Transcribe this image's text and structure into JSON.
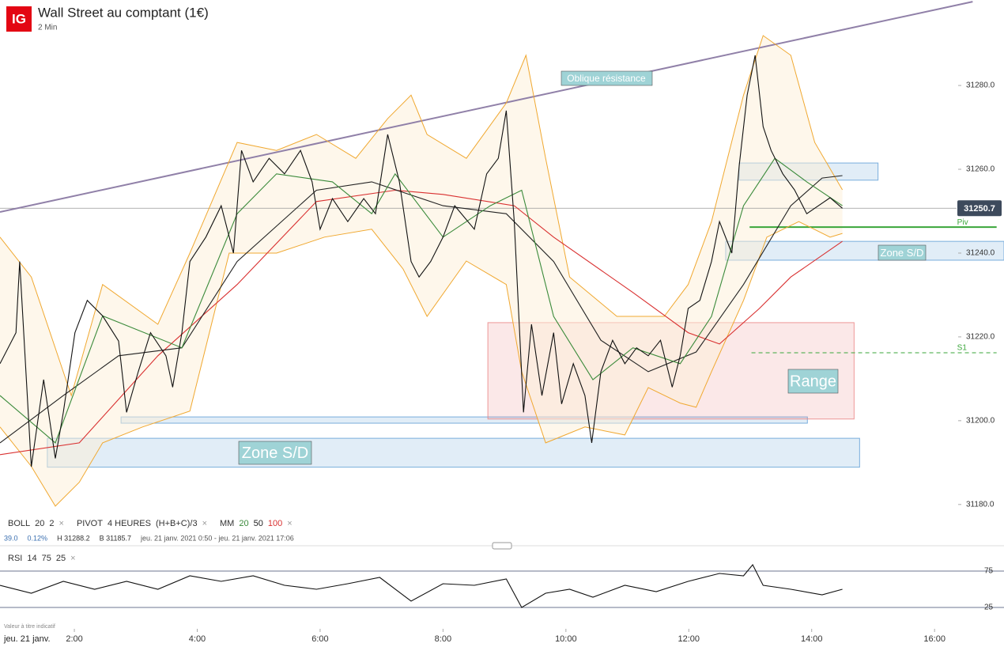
{
  "header": {
    "logo": "IG",
    "title": "Wall Street au comptant (1€)",
    "subtitle": "2 Min"
  },
  "legend": {
    "boll": "BOLL",
    "boll_params": [
      "20",
      "2"
    ],
    "pivot": "PIVOT",
    "pivot_params": [
      "4 HEURES",
      "(H+B+C)/3"
    ],
    "mm": "MM",
    "mm_params": [
      "20",
      "50",
      "100"
    ],
    "close": "×"
  },
  "info": [
    "39.0",
    "0.12%",
    "H 31288.2",
    "B 31185.7",
    "jeu. 21 janv. 2021 0:50 - jeu. 21 janv. 2021 17:06"
  ],
  "rsi_legend": {
    "label": "RSI",
    "params": [
      "14",
      "75",
      "25"
    ]
  },
  "watermark": "Valeur à titre indicatif",
  "date_label": "jeu. 21 janv.",
  "chart_data": [
    {
      "type": "line",
      "xlim": [
        0.79,
        17.13
      ],
      "ylim": [
        31177.7,
        31300.4
      ],
      "yticks": [
        {
          "value": 31180,
          "label": "31180.0"
        },
        {
          "value": 31200,
          "label": "31200.0"
        },
        {
          "value": 31220,
          "label": "31220.0"
        },
        {
          "value": 31240,
          "label": "31240.0"
        },
        {
          "value": 31260,
          "label": "31260.0"
        },
        {
          "value": 31280,
          "label": "31280.0"
        }
      ],
      "series": [
        {
          "color": "#f0a830",
          "band": "upper",
          "x": [
            0.79,
            1.3,
            1.95,
            2.46,
            3.36,
            3.88,
            4.65,
            5.29,
            5.94,
            6.58,
            7.1,
            7.48,
            7.74,
            8.38,
            9.03,
            9.35,
            9.67,
            10.06,
            10.83,
            11.6,
            11.99,
            12.37,
            12.89,
            13.21,
            13.66,
            14.05,
            14.5
          ],
          "values": [
            31243.8,
            31234.3,
            31206.0,
            31232.5,
            31223.0,
            31240.0,
            31266.4,
            31264.5,
            31268.3,
            31262.6,
            31272.1,
            31277.7,
            31268.3,
            31262.6,
            31275.8,
            31287.2,
            31262.6,
            31234.3,
            31224.9,
            31224.9,
            31232.5,
            31247.5,
            31277.7,
            31291.9,
            31287.2,
            31266.4,
            31255.1
          ]
        },
        {
          "color": "#f0a830",
          "band": "lower",
          "x": [
            0.79,
            1.3,
            1.69,
            2.08,
            2.46,
            3.11,
            3.88,
            4.52,
            5.29,
            6.07,
            6.84,
            7.35,
            7.74,
            8.38,
            9.03,
            9.28,
            9.67,
            10.31,
            10.96,
            11.34,
            11.86,
            12.12,
            12.37,
            12.89,
            13.27,
            13.79,
            14.3,
            14.5
          ],
          "values": [
            31198.5,
            31189.1,
            31179.6,
            31185.3,
            31194.7,
            31198.5,
            31202.3,
            31240.0,
            31240.0,
            31243.8,
            31245.7,
            31236.2,
            31224.9,
            31238.1,
            31232.5,
            31211.7,
            31194.7,
            31198.5,
            31196.6,
            31207.9,
            31204.2,
            31203.2,
            31211.7,
            31228.7,
            31243.8,
            31247.5,
            31243.8,
            31244.7
          ]
        },
        {
          "color": "#d93030",
          "x": [
            0.79,
            2.08,
            3.36,
            4.65,
            5.94,
            7.22,
            8.0,
            9.16,
            9.8,
            11.09,
            11.99,
            12.5,
            13.15,
            13.66,
            14.5
          ],
          "values": [
            31191.9,
            31194.7,
            31215.5,
            31232.5,
            31252.3,
            31255.0,
            31254.0,
            31251.3,
            31243.8,
            31230.6,
            31221.0,
            31218.3,
            31226.8,
            31234.3,
            31242.8
          ]
        },
        {
          "color": "#222222",
          "x": [
            0.79,
            1.82,
            2.72,
            3.75,
            4.65,
            5.94,
            6.84,
            8.0,
            9.03,
            9.8,
            10.57,
            11.34,
            12.12,
            12.89,
            13.66,
            14.17,
            14.5
          ],
          "values": [
            31194.7,
            31206.0,
            31215.5,
            31217.4,
            31238.0,
            31255.0,
            31257.0,
            31251.3,
            31249.4,
            31238.0,
            31219.2,
            31211.7,
            31216.4,
            31232.5,
            31251.3,
            31257.9,
            31258.5
          ]
        },
        {
          "color": "#3a8a3a",
          "x": [
            0.79,
            1.69,
            2.46,
            3.75,
            4.65,
            5.29,
            6.2,
            6.84,
            7.22,
            8.0,
            8.77,
            9.28,
            9.8,
            10.44,
            11.09,
            11.86,
            12.37,
            12.89,
            13.4,
            13.92,
            14.5
          ],
          "values": [
            31206.0,
            31194.7,
            31225.0,
            31217.4,
            31249.4,
            31258.9,
            31257.0,
            31249.4,
            31258.9,
            31243.8,
            31251.3,
            31255.0,
            31224.9,
            31209.8,
            31217.4,
            31213.6,
            31224.9,
            31251.3,
            31262.6,
            31257.0,
            31251.3
          ]
        },
        {
          "color": "#111111",
          "x": [
            0.79,
            1.05,
            1.11,
            1.3,
            1.5,
            1.69,
            1.82,
            2.01,
            2.21,
            2.46,
            2.72,
            2.85,
            3.04,
            3.24,
            3.49,
            3.6,
            3.75,
            3.88,
            4.14,
            4.39,
            4.59,
            4.72,
            4.91,
            5.17,
            5.42,
            5.68,
            5.87,
            6.0,
            6.2,
            6.45,
            6.71,
            6.9,
            7.1,
            7.29,
            7.48,
            7.61,
            7.8,
            8.0,
            8.19,
            8.51,
            8.71,
            8.9,
            9.03,
            9.16,
            9.31,
            9.44,
            9.61,
            9.8,
            9.93,
            10.12,
            10.31,
            10.42,
            10.57,
            10.76,
            10.96,
            11.15,
            11.34,
            11.54,
            11.73,
            11.86,
            11.99,
            12.18,
            12.37,
            12.5,
            12.7,
            12.82,
            12.95,
            13.08,
            13.21,
            13.34,
            13.53,
            13.72,
            13.92,
            14.11,
            14.3,
            14.5
          ],
          "values": [
            31213.6,
            31221.0,
            31238.0,
            31189.0,
            31209.8,
            31191.0,
            31202.0,
            31221.0,
            31228.7,
            31225.0,
            31219.0,
            31202.0,
            31211.7,
            31221.0,
            31215.5,
            31208.0,
            31221.0,
            31238.0,
            31243.8,
            31251.3,
            31240.0,
            31264.5,
            31257.0,
            31262.6,
            31258.9,
            31264.5,
            31257.0,
            31245.7,
            31253.0,
            31247.5,
            31253.0,
            31249.4,
            31268.3,
            31257.0,
            31238.0,
            31234.3,
            31238.0,
            31243.8,
            31251.3,
            31245.7,
            31258.9,
            31262.6,
            31274.0,
            31247.5,
            31202.0,
            31223.0,
            31206.0,
            31221.0,
            31204.0,
            31213.6,
            31206.0,
            31194.7,
            31211.7,
            31219.2,
            31213.6,
            31217.4,
            31215.5,
            31219.2,
            31208.0,
            31215.5,
            31226.8,
            31228.7,
            31238.0,
            31247.5,
            31240.0,
            31260.8,
            31277.7,
            31287.2,
            31270.2,
            31264.5,
            31258.9,
            31255.1,
            31249.4,
            31251.3,
            31253.2,
            31250.7
          ]
        }
      ],
      "trendline": {
        "label": "Oblique résistance",
        "color": "#9080a8",
        "x": [
          0.79,
          16.62
        ],
        "values": [
          31249.8,
          31300.0
        ]
      },
      "zones": [
        {
          "label": "Zone S/D",
          "x": [
            1.56,
            14.78
          ],
          "values": [
            31188.9,
            31195.8
          ],
          "color": "#5b9bd5"
        },
        {
          "x": [
            2.76,
            13.93
          ],
          "values": [
            31199.4,
            31200.9
          ],
          "color": "#5b9bd5"
        },
        {
          "label": "Range",
          "x": [
            8.73,
            14.69
          ],
          "values": [
            31200.4,
            31223.4
          ],
          "color": "#e88080"
        },
        {
          "x": [
            12.82,
            15.08
          ],
          "values": [
            31257.4,
            31261.5
          ],
          "color": "#5b9bd5"
        },
        {
          "label": "Zone S/D",
          "x": [
            12.6,
            17.13
          ],
          "values": [
            31238.3,
            31242.8
          ],
          "color": "#5b9bd5"
        }
      ],
      "levels": [
        {
          "label": "Piv",
          "value": 31246.2,
          "x": [
            12.99,
            17.01
          ],
          "color": "#3aa63a",
          "dashed": false
        },
        {
          "label": "S1",
          "value": 31216.2,
          "x": [
            13.02,
            17.01
          ],
          "color": "#3aa63a",
          "dashed": true
        }
      ],
      "last_price": 31250.7
    },
    {
      "type": "line",
      "xlim": [
        0.79,
        17.13
      ],
      "ylim": [
        17.4,
        98.9
      ],
      "yticks": [
        25,
        75
      ],
      "xticks": [
        {
          "value": 2,
          "label": "2:00"
        },
        {
          "value": 4,
          "label": "4:00"
        },
        {
          "value": 6,
          "label": "6:00"
        },
        {
          "value": 8,
          "label": "8:00"
        },
        {
          "value": 10,
          "label": "10:00"
        },
        {
          "value": 12,
          "label": "12:00"
        },
        {
          "value": 14,
          "label": "14:00"
        },
        {
          "value": 16,
          "label": "16:00"
        }
      ],
      "series": [
        {
          "color": "#111111",
          "x": [
            0.79,
            1.3,
            1.82,
            2.33,
            2.85,
            3.36,
            3.88,
            4.39,
            4.91,
            5.42,
            5.94,
            6.45,
            6.97,
            7.48,
            8.0,
            8.51,
            9.03,
            9.28,
            9.67,
            10.06,
            10.44,
            10.96,
            11.47,
            11.99,
            12.5,
            12.89,
            13.04,
            13.21,
            13.66,
            14.17,
            14.5
          ],
          "values": [
            55.4,
            44.6,
            60.9,
            50.0,
            60.9,
            50.0,
            68.5,
            60.9,
            68.5,
            55.4,
            50.0,
            57.6,
            66.3,
            33.7,
            57.6,
            55.4,
            64.1,
            25.0,
            44.6,
            50.0,
            39.1,
            55.4,
            46.7,
            60.9,
            71.7,
            68.5,
            83.7,
            55.4,
            50.0,
            42.4,
            50.0
          ]
        }
      ]
    }
  ]
}
